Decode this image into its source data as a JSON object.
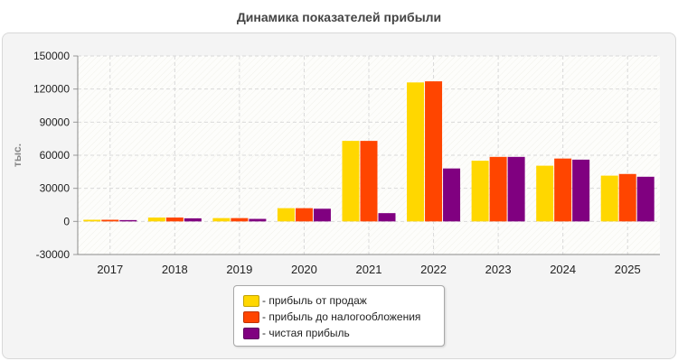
{
  "chart_data": {
    "type": "bar",
    "title": "Динамика показателей прибыли",
    "ylabel": "тыс.",
    "xlabel": "",
    "categories": [
      "2017",
      "2018",
      "2019",
      "2020",
      "2021",
      "2022",
      "2023",
      "2024",
      "2025"
    ],
    "series": [
      {
        "name": "- прибыль от продаж",
        "color": "#FFD700",
        "values": [
          1500,
          3500,
          3000,
          12000,
          73000,
          126000,
          55000,
          50500,
          41500
        ]
      },
      {
        "name": "- прибыль до налогообложения",
        "color": "#FF4500",
        "values": [
          1500,
          3500,
          3000,
          12000,
          73000,
          127000,
          58500,
          57000,
          43000
        ]
      },
      {
        "name": "- чистая прибыль",
        "color": "#800080",
        "values": [
          1200,
          2800,
          2300,
          11500,
          7500,
          48000,
          58500,
          56000,
          40500
        ]
      }
    ],
    "ylim": [
      -30000,
      150000
    ],
    "yticks": [
      "150000",
      "120000",
      "90000",
      "60000",
      "30000",
      "0",
      "-30000"
    ],
    "grid": true,
    "legend_position": "bottom-center"
  }
}
